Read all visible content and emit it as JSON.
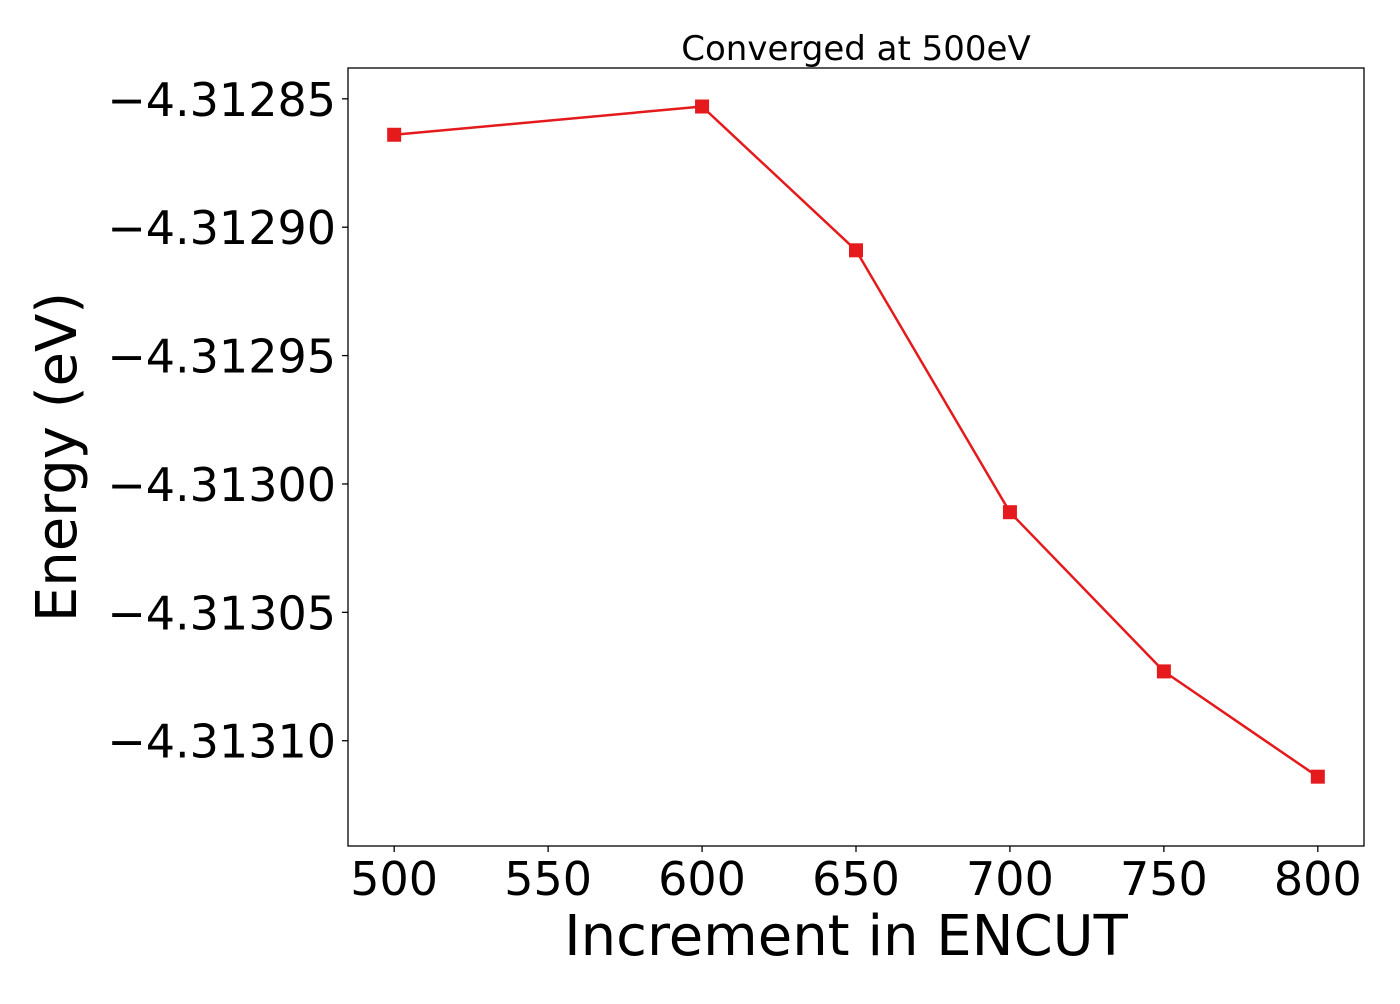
{
  "chart_data": {
    "type": "line",
    "title": "Converged at 500eV",
    "xlabel": "Increment in ENCUT",
    "ylabel": "Energy (eV)",
    "x": [
      500,
      600,
      650,
      700,
      750,
      800
    ],
    "series": [
      {
        "values": [
          -4.312864,
          -4.312853,
          -4.312909,
          -4.313011,
          -4.313073,
          -4.313114
        ],
        "color": "#e41a1c",
        "marker": "square"
      }
    ],
    "xlim": [
      485,
      815
    ],
    "ylim": [
      -4.313141,
      -4.312838
    ],
    "xticks": [
      500,
      550,
      600,
      650,
      700,
      750,
      800
    ],
    "xtick_labels": [
      "500",
      "550",
      "600",
      "650",
      "700",
      "750",
      "800"
    ],
    "yticks": [
      -4.31285,
      -4.3129,
      -4.31295,
      -4.313,
      -4.31305,
      -4.3131
    ],
    "ytick_labels": [
      "−4.31285",
      "−4.31290",
      "−4.31295",
      "−4.31300",
      "−4.31305",
      "−4.31310"
    ],
    "grid": false,
    "legend": "none"
  }
}
